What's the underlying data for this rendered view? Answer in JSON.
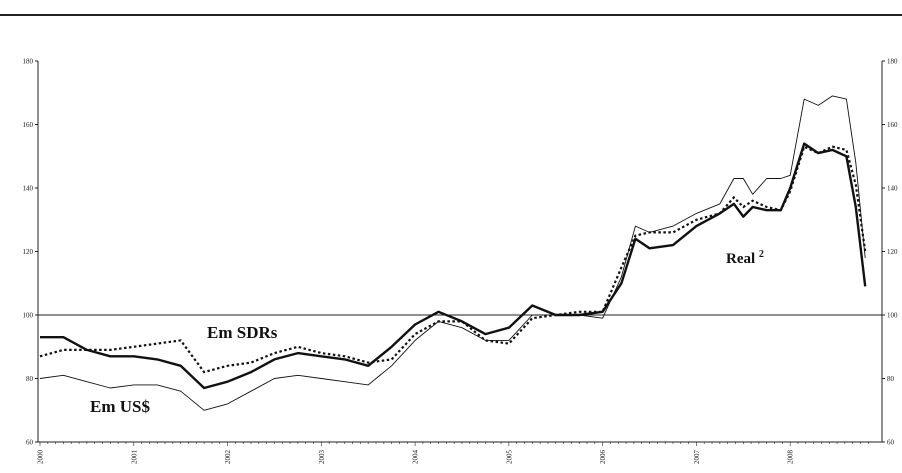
{
  "chart_data": {
    "type": "line",
    "title": "",
    "xlabel": "",
    "ylabel": "",
    "ylim": [
      60,
      180
    ],
    "yticks": [
      60,
      80,
      100,
      120,
      140,
      160,
      180
    ],
    "right_axis_ticks": [
      "60",
      "80",
      "100",
      "120",
      "140",
      "160",
      "180"
    ],
    "xticks": [
      2000,
      2001,
      2002,
      2003,
      2004,
      2005,
      2006,
      2007,
      2008
    ],
    "xlim": [
      2000,
      2008.83
    ],
    "grid": false,
    "reference_line": 100,
    "annotations": [
      {
        "text": "Em SDRs",
        "series": "sdr"
      },
      {
        "text": "Em US$",
        "series": "usd"
      },
      {
        "text": "Real",
        "superscript": "2",
        "series": "real"
      }
    ],
    "series": [
      {
        "id": "sdr",
        "style": "thick-solid",
        "x": [
          2000.0,
          2000.25,
          2000.5,
          2000.75,
          2001.0,
          2001.25,
          2001.5,
          2001.75,
          2002.0,
          2002.25,
          2002.5,
          2002.75,
          2003.0,
          2003.25,
          2003.5,
          2003.75,
          2004.0,
          2004.25,
          2004.5,
          2004.75,
          2005.0,
          2005.25,
          2005.5,
          2005.75,
          2006.0,
          2006.2,
          2006.35,
          2006.5,
          2006.75,
          2007.0,
          2007.25,
          2007.4,
          2007.5,
          2007.6,
          2007.75,
          2007.9,
          2008.0,
          2008.15,
          2008.3,
          2008.45,
          2008.6,
          2008.7,
          2008.8
        ],
        "y": [
          93,
          93,
          89,
          87,
          87,
          86,
          84,
          77,
          79,
          82,
          86,
          88,
          87,
          86,
          84,
          90,
          97,
          101,
          98,
          94,
          96,
          103,
          100,
          100,
          101,
          110,
          124,
          121,
          122,
          128,
          132,
          135,
          131,
          134,
          133,
          133,
          140,
          154,
          151,
          152,
          150,
          134,
          109
        ]
      },
      {
        "id": "real",
        "style": "dotted",
        "x": [
          2000.0,
          2000.25,
          2000.5,
          2000.75,
          2001.0,
          2001.25,
          2001.5,
          2001.75,
          2002.0,
          2002.25,
          2002.5,
          2002.75,
          2003.0,
          2003.25,
          2003.5,
          2003.75,
          2004.0,
          2004.25,
          2004.5,
          2004.75,
          2005.0,
          2005.25,
          2005.5,
          2005.75,
          2006.0,
          2006.2,
          2006.35,
          2006.5,
          2006.75,
          2007.0,
          2007.25,
          2007.4,
          2007.5,
          2007.6,
          2007.75,
          2007.9,
          2008.0,
          2008.15,
          2008.3,
          2008.45,
          2008.6,
          2008.7,
          2008.8
        ],
        "y": [
          87,
          89,
          89,
          89,
          90,
          91,
          92,
          82,
          84,
          85,
          88,
          90,
          88,
          87,
          85,
          86,
          94,
          98,
          98,
          92,
          91,
          99,
          100,
          101,
          101,
          115,
          125,
          126,
          126,
          130,
          132,
          137,
          134,
          136,
          134,
          133,
          139,
          153,
          151,
          153,
          152,
          141,
          120
        ]
      },
      {
        "id": "usd",
        "style": "thin-solid",
        "x": [
          2000.0,
          2000.25,
          2000.5,
          2000.75,
          2001.0,
          2001.25,
          2001.5,
          2001.75,
          2002.0,
          2002.25,
          2002.5,
          2002.75,
          2003.0,
          2003.25,
          2003.5,
          2003.75,
          2004.0,
          2004.25,
          2004.5,
          2004.75,
          2005.0,
          2005.25,
          2005.5,
          2005.75,
          2006.0,
          2006.2,
          2006.35,
          2006.5,
          2006.75,
          2007.0,
          2007.25,
          2007.4,
          2007.5,
          2007.6,
          2007.75,
          2007.9,
          2008.0,
          2008.15,
          2008.3,
          2008.45,
          2008.6,
          2008.7,
          2008.8
        ],
        "y": [
          80,
          81,
          79,
          77,
          78,
          78,
          76,
          70,
          72,
          76,
          80,
          81,
          80,
          79,
          78,
          84,
          92,
          98,
          96,
          92,
          92,
          100,
          100,
          100,
          99,
          112,
          128,
          126,
          128,
          132,
          135,
          143,
          143,
          138,
          143,
          143,
          144,
          168,
          166,
          169,
          168,
          148,
          118
        ]
      }
    ]
  }
}
